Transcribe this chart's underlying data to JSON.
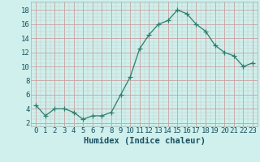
{
  "x": [
    0,
    1,
    2,
    3,
    4,
    5,
    6,
    7,
    8,
    9,
    10,
    11,
    12,
    13,
    14,
    15,
    16,
    17,
    18,
    19,
    20,
    21,
    22,
    23
  ],
  "y": [
    4.5,
    3.0,
    4.0,
    4.0,
    3.5,
    2.5,
    3.0,
    3.0,
    3.5,
    6.0,
    8.5,
    12.5,
    14.5,
    16.0,
    16.5,
    18.0,
    17.5,
    16.0,
    15.0,
    13.0,
    12.0,
    11.5,
    10.0,
    10.5
  ],
  "line_color": "#2d7d6e",
  "marker": "+",
  "marker_size": 4,
  "bg_color": "#cff0ec",
  "grid_major_color": "#b8c8c4",
  "grid_minor_color": "#d0e0dc",
  "xlabel": "Humidex (Indice chaleur)",
  "xlabel_color": "#1a5060",
  "xlabel_fontsize": 7.5,
  "tick_color": "#1a5060",
  "tick_fontsize": 6.5,
  "ytick_values": [
    2,
    4,
    6,
    8,
    10,
    12,
    14,
    16,
    18
  ],
  "xlim": [
    -0.5,
    23.5
  ],
  "ylim": [
    1.5,
    19.2
  ]
}
